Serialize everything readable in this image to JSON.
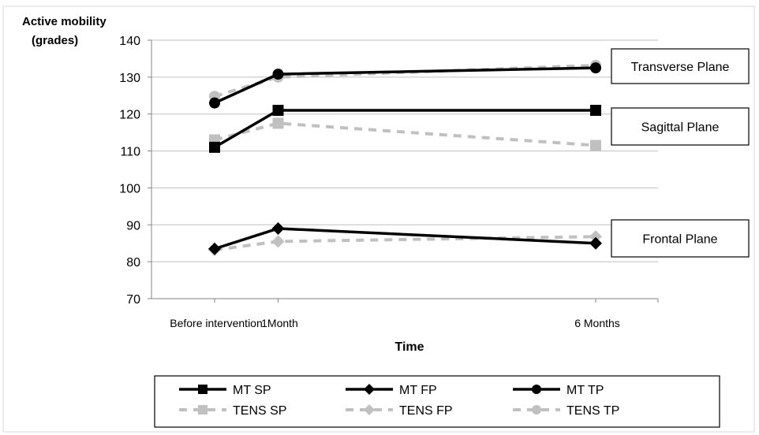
{
  "chart_data": {
    "type": "line",
    "ylabel_line1": "Active mobility",
    "ylabel_line2": "(grades)",
    "xlabel": "Time",
    "ylim": [
      70,
      140
    ],
    "yticks": [
      70,
      80,
      90,
      100,
      110,
      120,
      130,
      140
    ],
    "x_timepoints_months": [
      0,
      1,
      6
    ],
    "categories": [
      "Before intervention",
      "1Month",
      "6 Months"
    ],
    "grid": "horizontal",
    "legend_placement": "bottom",
    "annotations": [
      {
        "text": "Transverse Plane",
        "y": 133
      },
      {
        "text": "Sagittal Plane",
        "y": 117
      },
      {
        "text": "Frontal Plane",
        "y": 86.5
      }
    ],
    "series": [
      {
        "name": "MT SP",
        "values": [
          111,
          121,
          121
        ],
        "color": "#000000",
        "dash": "solid",
        "marker": "square"
      },
      {
        "name": "MT FP",
        "values": [
          83.5,
          89,
          85
        ],
        "color": "#000000",
        "dash": "solid",
        "marker": "diamond"
      },
      {
        "name": "MT TP",
        "values": [
          123,
          130.8,
          132.5
        ],
        "color": "#000000",
        "dash": "solid",
        "marker": "circle"
      },
      {
        "name": "TENS SP",
        "values": [
          113,
          117.5,
          111.5
        ],
        "color": "#c0c0c0",
        "dash": "dashed",
        "marker": "square"
      },
      {
        "name": "TENS FP",
        "values": [
          83.2,
          85.5,
          86.8
        ],
        "color": "#c0c0c0",
        "dash": "dashed",
        "marker": "diamond"
      },
      {
        "name": "TENS TP",
        "values": [
          124.8,
          130,
          133.2
        ],
        "color": "#c0c0c0",
        "dash": "dashed",
        "marker": "circle"
      }
    ]
  }
}
